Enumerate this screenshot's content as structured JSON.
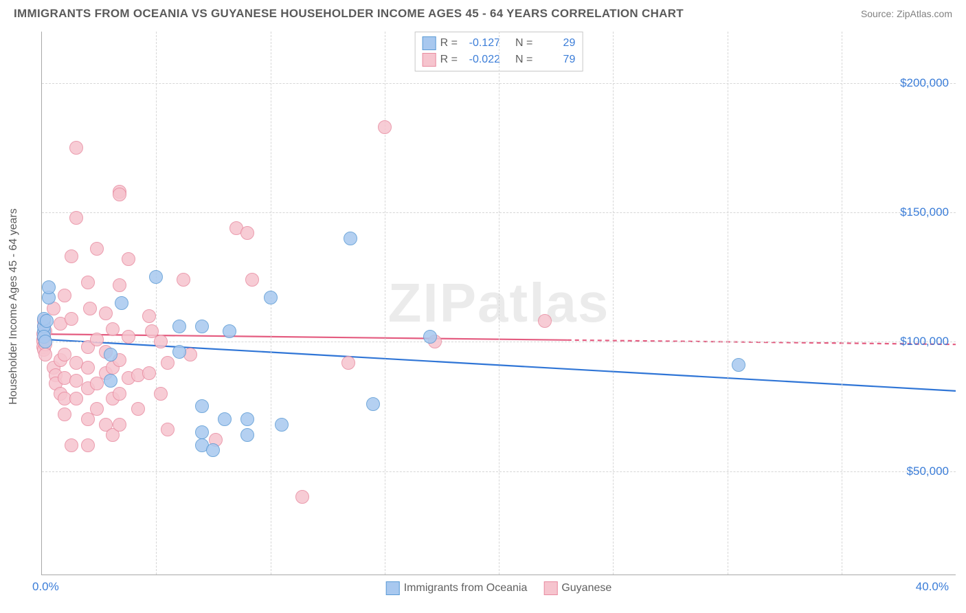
{
  "title": "IMMIGRANTS FROM OCEANIA VS GUYANESE HOUSEHOLDER INCOME AGES 45 - 64 YEARS CORRELATION CHART",
  "source": "Source: ZipAtlas.com",
  "watermark": "ZIPatlas",
  "y_axis_title": "Householder Income Ages 45 - 64 years",
  "colors": {
    "blue_fill": "#a8c8ef",
    "blue_stroke": "#5b9bd5",
    "pink_fill": "#f6c4ce",
    "pink_stroke": "#e88ba0",
    "blue_line": "#2f75d6",
    "pink_line": "#e45c80",
    "tick_text": "#3b7dd8",
    "grid": "#d6d6d6",
    "axis": "#a8a8a8",
    "title_text": "#5a5a5a"
  },
  "chart": {
    "type": "scatter",
    "xlim": [
      0,
      40
    ],
    "ylim": [
      10000,
      220000
    ],
    "x_tick_step": 5,
    "y_ticks": [
      50000,
      100000,
      150000,
      200000
    ],
    "y_tick_labels": [
      "$50,000",
      "$100,000",
      "$150,000",
      "$200,000"
    ],
    "x_tick_left": "0.0%",
    "x_tick_right": "40.0%",
    "marker_radius": 9,
    "line_width": 2.2
  },
  "stats": {
    "series": [
      {
        "r_label": "R =",
        "r": "-0.127",
        "n_label": "N =",
        "n": "29",
        "swatch": "blue"
      },
      {
        "r_label": "R =",
        "r": "-0.022",
        "n_label": "N =",
        "n": "79",
        "swatch": "pink"
      }
    ]
  },
  "legend": [
    {
      "label": "Immigrants from Oceania",
      "swatch": "blue"
    },
    {
      "label": "Guyanese",
      "swatch": "pink"
    }
  ],
  "trends": {
    "blue": {
      "y_at_x0": 101000,
      "y_at_x40": 81000,
      "dash_from_x": null
    },
    "pink": {
      "y_at_x0": 103000,
      "y_at_x40": 99000,
      "dash_from_x": 23
    }
  },
  "series_blue": [
    {
      "x": 0.1,
      "y": 104000
    },
    {
      "x": 0.1,
      "y": 106000
    },
    {
      "x": 0.1,
      "y": 109000
    },
    {
      "x": 0.1,
      "y": 102000
    },
    {
      "x": 0.15,
      "y": 100000
    },
    {
      "x": 0.2,
      "y": 108000
    },
    {
      "x": 0.3,
      "y": 117000
    },
    {
      "x": 0.3,
      "y": 121000
    },
    {
      "x": 3.0,
      "y": 95000
    },
    {
      "x": 3.5,
      "y": 115000
    },
    {
      "x": 3.0,
      "y": 85000
    },
    {
      "x": 5.0,
      "y": 125000
    },
    {
      "x": 6.0,
      "y": 106000
    },
    {
      "x": 6.0,
      "y": 96000
    },
    {
      "x": 7.0,
      "y": 106000
    },
    {
      "x": 7.0,
      "y": 75000
    },
    {
      "x": 7.0,
      "y": 65000
    },
    {
      "x": 7.0,
      "y": 60000
    },
    {
      "x": 8.0,
      "y": 70000
    },
    {
      "x": 7.5,
      "y": 58000
    },
    {
      "x": 8.2,
      "y": 104000
    },
    {
      "x": 9.0,
      "y": 70000
    },
    {
      "x": 9.0,
      "y": 64000
    },
    {
      "x": 10.0,
      "y": 117000
    },
    {
      "x": 10.5,
      "y": 68000
    },
    {
      "x": 13.5,
      "y": 140000
    },
    {
      "x": 14.5,
      "y": 76000
    },
    {
      "x": 17.0,
      "y": 102000
    },
    {
      "x": 30.5,
      "y": 91000
    }
  ],
  "series_pink": [
    {
      "x": 0.05,
      "y": 103000
    },
    {
      "x": 0.05,
      "y": 101000
    },
    {
      "x": 0.05,
      "y": 100000
    },
    {
      "x": 0.05,
      "y": 98000
    },
    {
      "x": 0.1,
      "y": 106000
    },
    {
      "x": 0.1,
      "y": 108000
    },
    {
      "x": 0.1,
      "y": 102000
    },
    {
      "x": 0.1,
      "y": 97000
    },
    {
      "x": 0.15,
      "y": 104000
    },
    {
      "x": 0.15,
      "y": 99000
    },
    {
      "x": 0.15,
      "y": 95000
    },
    {
      "x": 0.5,
      "y": 113000
    },
    {
      "x": 0.5,
      "y": 90000
    },
    {
      "x": 0.6,
      "y": 87000
    },
    {
      "x": 0.6,
      "y": 84000
    },
    {
      "x": 0.8,
      "y": 107000
    },
    {
      "x": 0.8,
      "y": 93000
    },
    {
      "x": 0.8,
      "y": 80000
    },
    {
      "x": 1.0,
      "y": 118000
    },
    {
      "x": 1.0,
      "y": 95000
    },
    {
      "x": 1.0,
      "y": 86000
    },
    {
      "x": 1.0,
      "y": 78000
    },
    {
      "x": 1.0,
      "y": 72000
    },
    {
      "x": 1.3,
      "y": 133000
    },
    {
      "x": 1.3,
      "y": 109000
    },
    {
      "x": 1.3,
      "y": 60000
    },
    {
      "x": 1.5,
      "y": 175000
    },
    {
      "x": 1.5,
      "y": 148000
    },
    {
      "x": 1.5,
      "y": 92000
    },
    {
      "x": 1.5,
      "y": 85000
    },
    {
      "x": 1.5,
      "y": 78000
    },
    {
      "x": 2.0,
      "y": 123000
    },
    {
      "x": 2.0,
      "y": 98000
    },
    {
      "x": 2.0,
      "y": 90000
    },
    {
      "x": 2.0,
      "y": 82000
    },
    {
      "x": 2.0,
      "y": 70000
    },
    {
      "x": 2.0,
      "y": 60000
    },
    {
      "x": 2.1,
      "y": 113000
    },
    {
      "x": 2.4,
      "y": 136000
    },
    {
      "x": 2.4,
      "y": 101000
    },
    {
      "x": 2.4,
      "y": 84000
    },
    {
      "x": 2.4,
      "y": 74000
    },
    {
      "x": 2.8,
      "y": 111000
    },
    {
      "x": 2.8,
      "y": 96000
    },
    {
      "x": 2.8,
      "y": 88000
    },
    {
      "x": 2.8,
      "y": 68000
    },
    {
      "x": 3.1,
      "y": 105000
    },
    {
      "x": 3.1,
      "y": 90000
    },
    {
      "x": 3.1,
      "y": 78000
    },
    {
      "x": 3.1,
      "y": 64000
    },
    {
      "x": 3.4,
      "y": 158000
    },
    {
      "x": 3.4,
      "y": 157000
    },
    {
      "x": 3.4,
      "y": 122000
    },
    {
      "x": 3.4,
      "y": 93000
    },
    {
      "x": 3.4,
      "y": 80000
    },
    {
      "x": 3.4,
      "y": 68000
    },
    {
      "x": 3.8,
      "y": 132000
    },
    {
      "x": 3.8,
      "y": 102000
    },
    {
      "x": 3.8,
      "y": 86000
    },
    {
      "x": 4.2,
      "y": 87000
    },
    {
      "x": 4.2,
      "y": 74000
    },
    {
      "x": 4.7,
      "y": 110000
    },
    {
      "x": 4.7,
      "y": 88000
    },
    {
      "x": 4.8,
      "y": 104000
    },
    {
      "x": 5.2,
      "y": 100000
    },
    {
      "x": 5.2,
      "y": 80000
    },
    {
      "x": 5.5,
      "y": 92000
    },
    {
      "x": 5.5,
      "y": 66000
    },
    {
      "x": 6.2,
      "y": 124000
    },
    {
      "x": 6.5,
      "y": 95000
    },
    {
      "x": 7.6,
      "y": 62000
    },
    {
      "x": 8.5,
      "y": 144000
    },
    {
      "x": 9.0,
      "y": 142000
    },
    {
      "x": 9.2,
      "y": 124000
    },
    {
      "x": 11.4,
      "y": 40000
    },
    {
      "x": 13.4,
      "y": 92000
    },
    {
      "x": 15.0,
      "y": 183000
    },
    {
      "x": 17.2,
      "y": 100000
    },
    {
      "x": 22.0,
      "y": 108000
    }
  ]
}
